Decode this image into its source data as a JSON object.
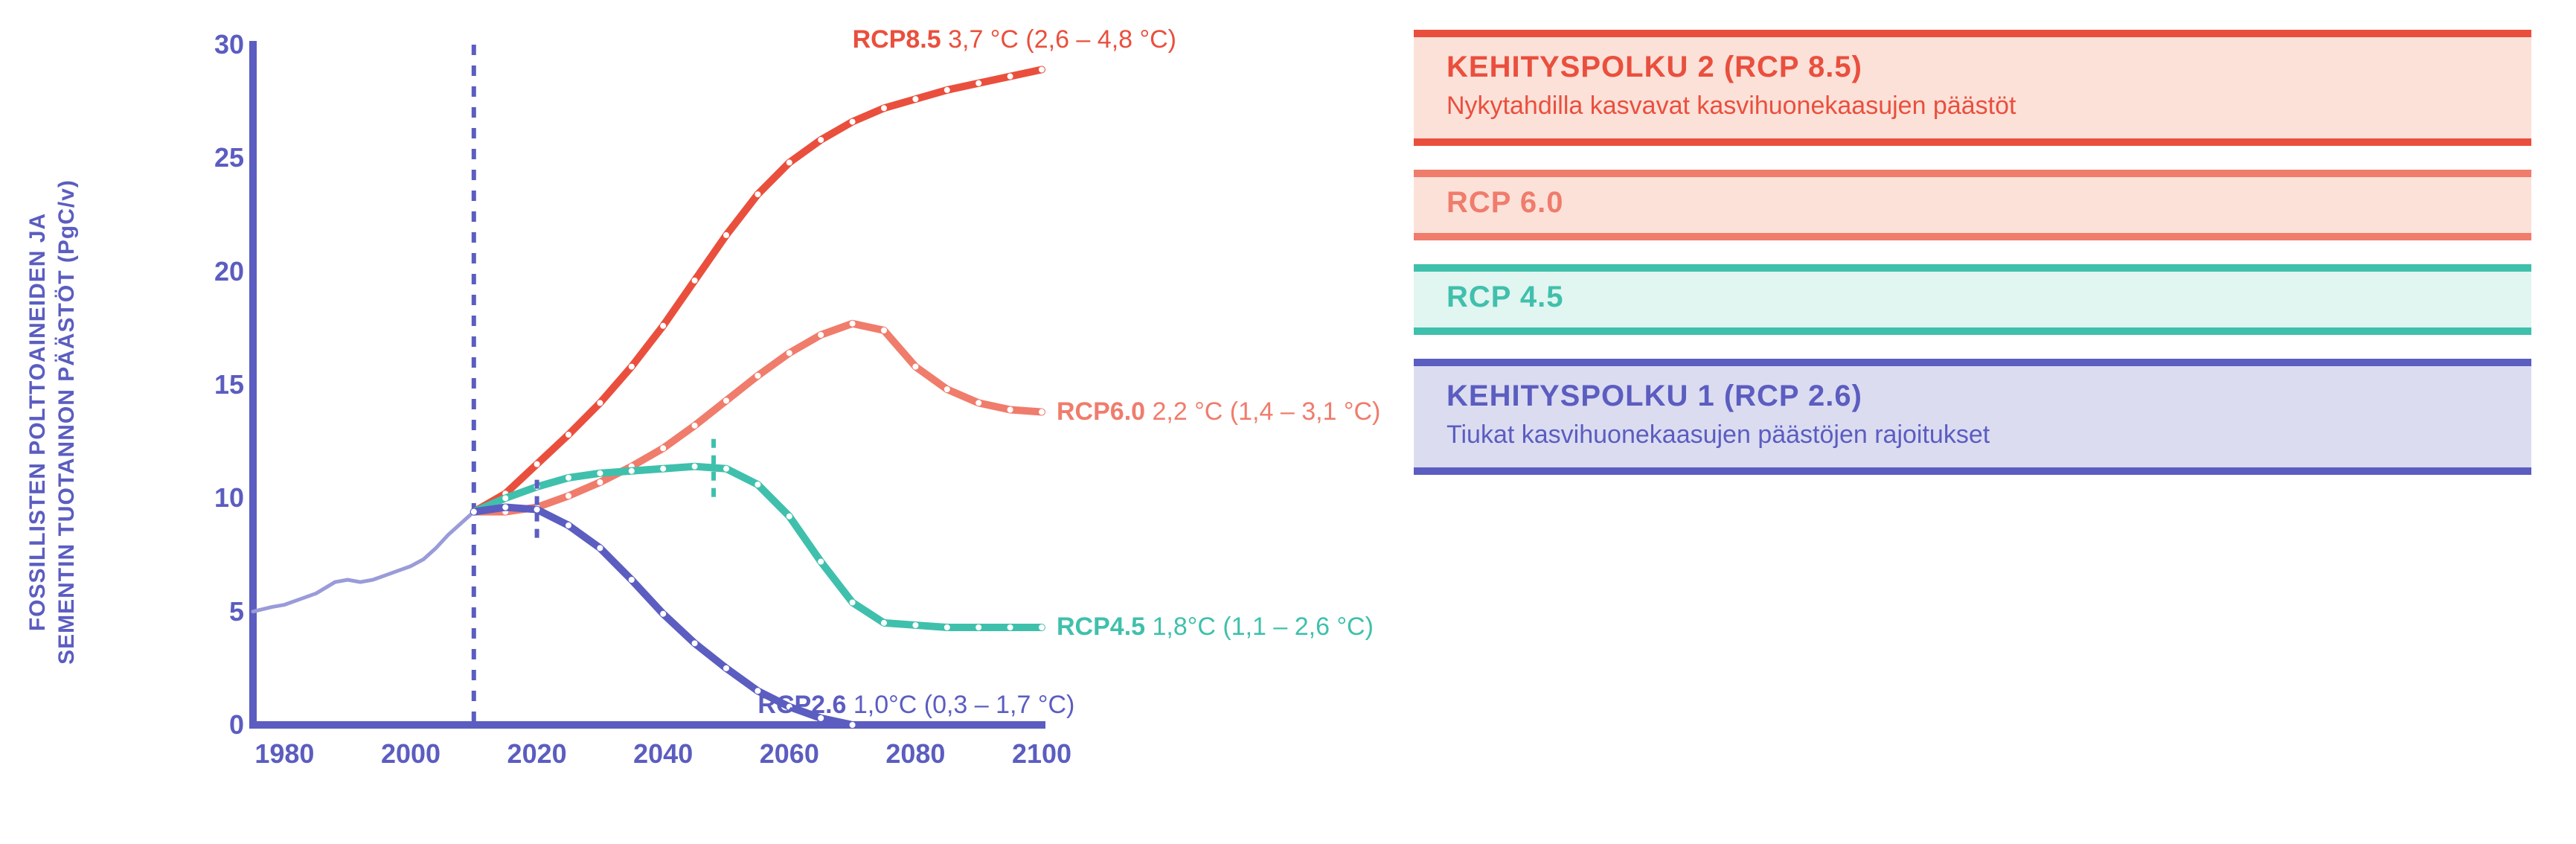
{
  "colors": {
    "purple": "#5b5dc0",
    "red": "#ea4f3d",
    "red_light": "#f07c6c",
    "teal": "#3fc0ac",
    "bg_red": "#fce1d9",
    "bg_teal": "#e1f5f1",
    "bg_purple": "#dcdcf1",
    "white": "#ffffff"
  },
  "chart": {
    "type": "line",
    "y_label_line1": "FOSSILLISTEN POLTTOAINEIDEN JA",
    "y_label_line2": "SEMENTIN TUOTANNON PÄÄSTÖT (PgC/v)",
    "y_label_color": "#5b5dc0",
    "xlim": [
      1975,
      2100
    ],
    "ylim": [
      0,
      30
    ],
    "y_ticks": [
      0,
      5,
      10,
      15,
      20,
      25,
      30
    ],
    "x_ticks": [
      1980,
      2000,
      2020,
      2040,
      2060,
      2080,
      2100
    ],
    "tick_color": "#5b5dc0",
    "axis_color": "#5b5dc0",
    "axis_width": 10,
    "present_line_x": 2010,
    "present_line_color": "#5b5dc0",
    "historical": {
      "color": "#9a9bd8",
      "width": 5,
      "points": [
        [
          1975,
          5.0
        ],
        [
          1978,
          5.2
        ],
        [
          1980,
          5.3
        ],
        [
          1982,
          5.5
        ],
        [
          1985,
          5.8
        ],
        [
          1988,
          6.3
        ],
        [
          1990,
          6.4
        ],
        [
          1992,
          6.3
        ],
        [
          1994,
          6.4
        ],
        [
          1996,
          6.6
        ],
        [
          1998,
          6.8
        ],
        [
          2000,
          7.0
        ],
        [
          2002,
          7.3
        ],
        [
          2004,
          7.8
        ],
        [
          2006,
          8.4
        ],
        [
          2008,
          8.9
        ],
        [
          2010,
          9.4
        ]
      ]
    },
    "series": [
      {
        "id": "rcp85",
        "color": "#ea4f3d",
        "width": 10,
        "marker_color": "#ffffff",
        "points": [
          [
            2010,
            9.4
          ],
          [
            2015,
            10.2
          ],
          [
            2020,
            11.5
          ],
          [
            2025,
            12.8
          ],
          [
            2030,
            14.2
          ],
          [
            2035,
            15.8
          ],
          [
            2040,
            17.6
          ],
          [
            2045,
            19.6
          ],
          [
            2050,
            21.6
          ],
          [
            2055,
            23.4
          ],
          [
            2060,
            24.8
          ],
          [
            2065,
            25.8
          ],
          [
            2070,
            26.6
          ],
          [
            2075,
            27.2
          ],
          [
            2080,
            27.6
          ],
          [
            2085,
            28.0
          ],
          [
            2090,
            28.3
          ],
          [
            2095,
            28.6
          ],
          [
            2100,
            28.9
          ]
        ],
        "label_name": "RCP8.5",
        "label_value": "3,7 °C (2,6 – 4,8 °C)",
        "label_pos": "top"
      },
      {
        "id": "rcp60",
        "color": "#f07c6c",
        "width": 10,
        "marker_color": "#ffffff",
        "points": [
          [
            2010,
            9.4
          ],
          [
            2015,
            9.4
          ],
          [
            2020,
            9.6
          ],
          [
            2025,
            10.1
          ],
          [
            2030,
            10.7
          ],
          [
            2035,
            11.4
          ],
          [
            2040,
            12.2
          ],
          [
            2045,
            13.2
          ],
          [
            2050,
            14.3
          ],
          [
            2055,
            15.4
          ],
          [
            2060,
            16.4
          ],
          [
            2065,
            17.2
          ],
          [
            2070,
            17.7
          ],
          [
            2075,
            17.4
          ],
          [
            2080,
            15.8
          ],
          [
            2085,
            14.8
          ],
          [
            2090,
            14.2
          ],
          [
            2095,
            13.9
          ],
          [
            2100,
            13.8
          ]
        ],
        "label_name": "RCP6.0",
        "label_value": "2,2 °C (1,4 – 3,1 °C)",
        "label_pos": "end"
      },
      {
        "id": "rcp45",
        "color": "#3fc0ac",
        "width": 10,
        "marker_color": "#ffffff",
        "points": [
          [
            2010,
            9.4
          ],
          [
            2015,
            10.0
          ],
          [
            2020,
            10.5
          ],
          [
            2025,
            10.9
          ],
          [
            2030,
            11.1
          ],
          [
            2035,
            11.2
          ],
          [
            2040,
            11.3
          ],
          [
            2045,
            11.4
          ],
          [
            2050,
            11.3
          ],
          [
            2055,
            10.6
          ],
          [
            2060,
            9.2
          ],
          [
            2065,
            7.2
          ],
          [
            2070,
            5.4
          ],
          [
            2075,
            4.5
          ],
          [
            2080,
            4.4
          ],
          [
            2085,
            4.3
          ],
          [
            2090,
            4.3
          ],
          [
            2095,
            4.3
          ],
          [
            2100,
            4.3
          ]
        ],
        "label_name": "RCP4.5",
        "label_value": "1,8°C (1,1 – 2,6 °C)",
        "label_pos": "end",
        "dash_marker_x": 2048
      },
      {
        "id": "rcp26",
        "color": "#5b5dc0",
        "width": 10,
        "marker_color": "#ffffff",
        "points": [
          [
            2010,
            9.4
          ],
          [
            2015,
            9.6
          ],
          [
            2020,
            9.5
          ],
          [
            2025,
            8.8
          ],
          [
            2030,
            7.8
          ],
          [
            2035,
            6.4
          ],
          [
            2040,
            4.9
          ],
          [
            2045,
            3.6
          ],
          [
            2050,
            2.5
          ],
          [
            2055,
            1.5
          ],
          [
            2060,
            0.8
          ],
          [
            2065,
            0.3
          ],
          [
            2070,
            0.0
          ]
        ],
        "label_name": "RCP2.6",
        "label_value": "1,0°C (0,3 – 1,7 °C)",
        "label_pos": "inline",
        "dash_marker_x": 2020
      }
    ]
  },
  "legend": [
    {
      "id": "rcp85box",
      "bg": "#fce1d9",
      "bar": "#ea4f3d",
      "text_color": "#ea4f3d",
      "title": "KEHITYSPOLKU 2 (RCP 8.5)",
      "subtitle": "Nykytahdilla kasvavat kasvihuonekaasujen päästöt"
    },
    {
      "id": "rcp60box",
      "bg": "#fce1d9",
      "bar": "#f07c6c",
      "text_color": "#f07c6c",
      "title": "RCP 6.0",
      "subtitle": ""
    },
    {
      "id": "rcp45box",
      "bg": "#e1f5f1",
      "bar": "#3fc0ac",
      "text_color": "#3fc0ac",
      "title": "RCP 4.5",
      "subtitle": ""
    },
    {
      "id": "rcp26box",
      "bg": "#dcdcf1",
      "bar": "#5b5dc0",
      "text_color": "#5b5dc0",
      "title": "KEHITYSPOLKU 1 (RCP 2.6)",
      "subtitle": "Tiukat kasvihuonekaasujen päästöjen rajoitukset"
    }
  ]
}
